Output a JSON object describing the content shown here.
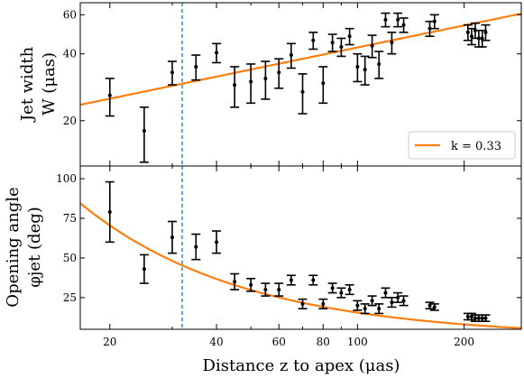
{
  "chart_data": [
    {
      "type": "scatter",
      "panel": "top",
      "ylabel_lines": [
        "Jet width",
        "W (μas)"
      ],
      "xscale": "log",
      "yscale": "log",
      "xlim": [
        16.5,
        290
      ],
      "ylim": [
        12.5,
        68
      ],
      "yticks": [
        20,
        40,
        60
      ],
      "ytick_labels": [
        "20",
        "40",
        "60"
      ],
      "vline_x": 32,
      "fit": {
        "label": "k = 0.33",
        "k": 0.33,
        "coef": 9.35,
        "color": "#ff7f0e"
      },
      "legend_position": "lower-right",
      "points": [
        {
          "x": 20,
          "y": 26,
          "err": 5
        },
        {
          "x": 25,
          "y": 18,
          "err": 5
        },
        {
          "x": 30,
          "y": 33,
          "err": 4
        },
        {
          "x": 35,
          "y": 35,
          "err": 4.5
        },
        {
          "x": 40,
          "y": 40.5,
          "err": 4
        },
        {
          "x": 45,
          "y": 29,
          "err": 6
        },
        {
          "x": 50,
          "y": 30,
          "err": 6
        },
        {
          "x": 55,
          "y": 31,
          "err": 6
        },
        {
          "x": 60,
          "y": 33,
          "err": 5
        },
        {
          "x": 65,
          "y": 39.5,
          "err": 5
        },
        {
          "x": 70,
          "y": 27,
          "err": 5.5
        },
        {
          "x": 75,
          "y": 46,
          "err": 4
        },
        {
          "x": 80,
          "y": 29.5,
          "err": 5.5
        },
        {
          "x": 85,
          "y": 45,
          "err": 4
        },
        {
          "x": 90,
          "y": 43,
          "err": 4
        },
        {
          "x": 95,
          "y": 48,
          "err": 4
        },
        {
          "x": 100,
          "y": 35,
          "err": 5
        },
        {
          "x": 105,
          "y": 34,
          "err": 5
        },
        {
          "x": 110,
          "y": 43.5,
          "err": 5
        },
        {
          "x": 115,
          "y": 36,
          "err": 5
        },
        {
          "x": 120,
          "y": 57,
          "err": 4
        },
        {
          "x": 125,
          "y": 45,
          "err": 5
        },
        {
          "x": 130,
          "y": 57,
          "err": 4
        },
        {
          "x": 135,
          "y": 54,
          "err": 4
        },
        {
          "x": 160,
          "y": 52,
          "err": 4
        },
        {
          "x": 165,
          "y": 56,
          "err": 4
        },
        {
          "x": 205,
          "y": 50,
          "err": 4
        },
        {
          "x": 210,
          "y": 48,
          "err": 4
        },
        {
          "x": 215,
          "y": 51,
          "err": 4
        },
        {
          "x": 220,
          "y": 47,
          "err": 4
        },
        {
          "x": 225,
          "y": 47,
          "err": 4
        },
        {
          "x": 230,
          "y": 50,
          "err": 4
        }
      ]
    },
    {
      "type": "scatter",
      "panel": "bottom",
      "ylabel_lines": [
        "Opening angle",
        "φjet (deg)"
      ],
      "xlabel": "Distance z to apex (μas)",
      "xscale": "log",
      "xlim": [
        16.5,
        290
      ],
      "ylim": [
        5,
        108
      ],
      "yticks": [
        25,
        50,
        75,
        100
      ],
      "ytick_labels": [
        "25",
        "50",
        "75",
        "100"
      ],
      "xticks": [
        20,
        40,
        60,
        80,
        100,
        200
      ],
      "xtick_labels": [
        "20",
        "40",
        "60",
        "80",
        "100",
        "200"
      ],
      "vline_x": 32,
      "fit": {
        "a": 1178,
        "b": -0.94,
        "color": "#ff7f0e"
      },
      "points": [
        {
          "x": 20,
          "y": 79,
          "err": 19
        },
        {
          "x": 25,
          "y": 43,
          "err": 9
        },
        {
          "x": 30,
          "y": 63,
          "err": 10
        },
        {
          "x": 35,
          "y": 57,
          "err": 8
        },
        {
          "x": 40,
          "y": 60,
          "err": 7
        },
        {
          "x": 45,
          "y": 35,
          "err": 5
        },
        {
          "x": 50,
          "y": 33,
          "err": 4
        },
        {
          "x": 55,
          "y": 30,
          "err": 4
        },
        {
          "x": 60,
          "y": 30,
          "err": 4
        },
        {
          "x": 65,
          "y": 36,
          "err": 3
        },
        {
          "x": 70,
          "y": 21,
          "err": 3
        },
        {
          "x": 75,
          "y": 36,
          "err": 3
        },
        {
          "x": 80,
          "y": 21,
          "err": 3
        },
        {
          "x": 85,
          "y": 31,
          "err": 3
        },
        {
          "x": 90,
          "y": 28,
          "err": 3
        },
        {
          "x": 95,
          "y": 30,
          "err": 3
        },
        {
          "x": 100,
          "y": 20,
          "err": 3
        },
        {
          "x": 105,
          "y": 18,
          "err": 3
        },
        {
          "x": 110,
          "y": 23,
          "err": 3
        },
        {
          "x": 115,
          "y": 18,
          "err": 3
        },
        {
          "x": 120,
          "y": 28,
          "err": 3
        },
        {
          "x": 125,
          "y": 22,
          "err": 3
        },
        {
          "x": 130,
          "y": 25,
          "err": 3
        },
        {
          "x": 135,
          "y": 23,
          "err": 3
        },
        {
          "x": 160,
          "y": 20,
          "err": 2
        },
        {
          "x": 165,
          "y": 19,
          "err": 2
        },
        {
          "x": 205,
          "y": 13,
          "err": 2
        },
        {
          "x": 210,
          "y": 13,
          "err": 2
        },
        {
          "x": 215,
          "y": 12,
          "err": 2
        },
        {
          "x": 220,
          "y": 12,
          "err": 2
        },
        {
          "x": 225,
          "y": 12,
          "err": 2
        },
        {
          "x": 230,
          "y": 12,
          "err": 2
        }
      ]
    }
  ]
}
